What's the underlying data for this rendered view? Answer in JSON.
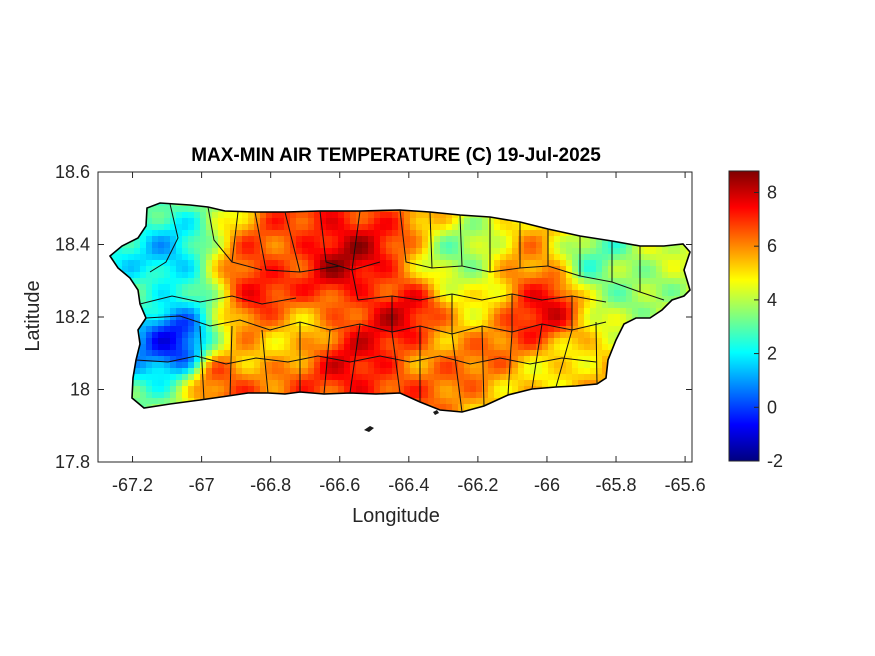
{
  "chart_data": {
    "type": "heatmap",
    "title": "MAX-MIN AIR TEMPERATURE (C) 19-Jul-2025",
    "xlabel": "Longitude",
    "ylabel": "Latitude",
    "xlim": [
      -67.3,
      -65.58
    ],
    "ylim": [
      17.8,
      18.6
    ],
    "xticks": [
      "-67.2",
      "-67",
      "-66.8",
      "-66.6",
      "-66.4",
      "-66.2",
      "-66",
      "-65.8",
      "-65.6"
    ],
    "yticks": [
      "18.6",
      "18.4",
      "18.2",
      "18",
      "17.8"
    ],
    "colorbar": {
      "colormap": "jet",
      "range": [
        -2,
        8.8
      ],
      "ticks": [
        "8",
        "6",
        "4",
        "2",
        "0",
        "-2"
      ]
    },
    "field_samples": [
      {
        "lon": -67.08,
        "lat": 18.13,
        "value": -0.5
      },
      {
        "lon": -67.1,
        "lat": 18.35,
        "value": 1.5
      },
      {
        "lon": -67.2,
        "lat": 18.3,
        "value": 2.5
      },
      {
        "lon": -66.6,
        "lat": 18.38,
        "value": 8.0
      },
      {
        "lon": -66.85,
        "lat": 18.3,
        "value": 7.5
      },
      {
        "lon": -66.45,
        "lat": 18.22,
        "value": 7.5
      },
      {
        "lon": -66.55,
        "lat": 18.05,
        "value": 7.5
      },
      {
        "lon": -66.95,
        "lat": 18.02,
        "value": 7.0
      },
      {
        "lon": -66.02,
        "lat": 18.25,
        "value": 7.5
      },
      {
        "lon": -66.25,
        "lat": 18.35,
        "value": 3.5
      },
      {
        "lon": -65.85,
        "lat": 18.33,
        "value": 3.0
      },
      {
        "lon": -65.95,
        "lat": 18.02,
        "value": 5.0
      },
      {
        "lon": -66.3,
        "lat": 18.05,
        "value": 6.0
      },
      {
        "lon": -66.75,
        "lat": 18.18,
        "value": 5.5
      }
    ]
  }
}
